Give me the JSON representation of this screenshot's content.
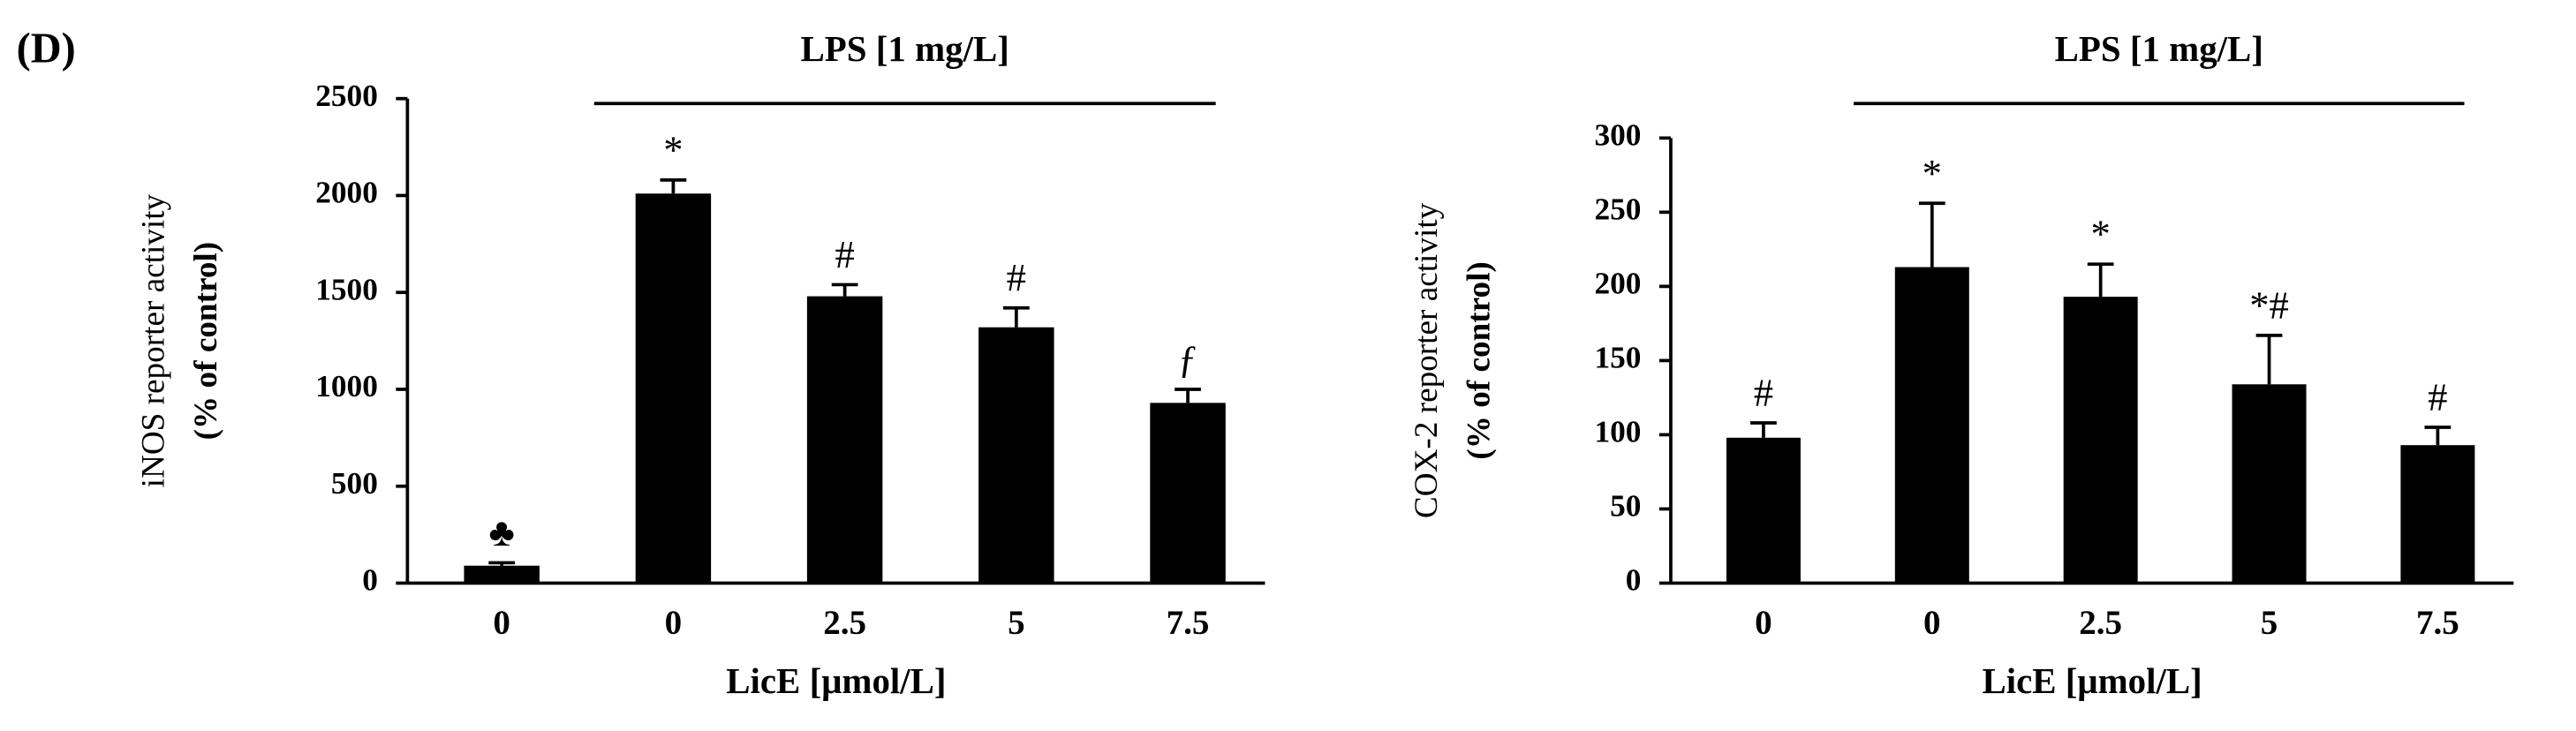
{
  "panel_label": "(D)",
  "chart_data": [
    {
      "type": "bar",
      "title": "LPS [1 mg/L]",
      "ylabel": [
        "iNOS reporter activity",
        "(% of control)"
      ],
      "xlabel": "LicE [μmol/L]",
      "categories": [
        "0",
        "0",
        "2.5",
        "5",
        "7.5"
      ],
      "values": [
        90,
        2010,
        1480,
        1320,
        930
      ],
      "errors": [
        15,
        70,
        60,
        100,
        70
      ],
      "annotations": [
        "♣",
        "*",
        "#",
        "#",
        "ƒ"
      ],
      "color": "#000000",
      "ylim": [
        0,
        2500
      ],
      "yticks": [
        0,
        500,
        1000,
        1500,
        2000,
        2500
      ]
    },
    {
      "type": "bar",
      "title": "LPS [1 mg/L]",
      "ylabel": [
        "COX-2 reporter activity",
        "(% of control)"
      ],
      "xlabel": "LicE [μmol/L]",
      "categories": [
        "0",
        "0",
        "2.5",
        "5",
        "7.5"
      ],
      "values": [
        98,
        213,
        193,
        134,
        93
      ],
      "errors": [
        10,
        43,
        22,
        33,
        12
      ],
      "annotations": [
        "#",
        "*",
        "*",
        "*#",
        "#"
      ],
      "color": "#000000",
      "ylim": [
        0,
        300
      ],
      "yticks": [
        0,
        50,
        100,
        150,
        200,
        250,
        300
      ]
    }
  ]
}
